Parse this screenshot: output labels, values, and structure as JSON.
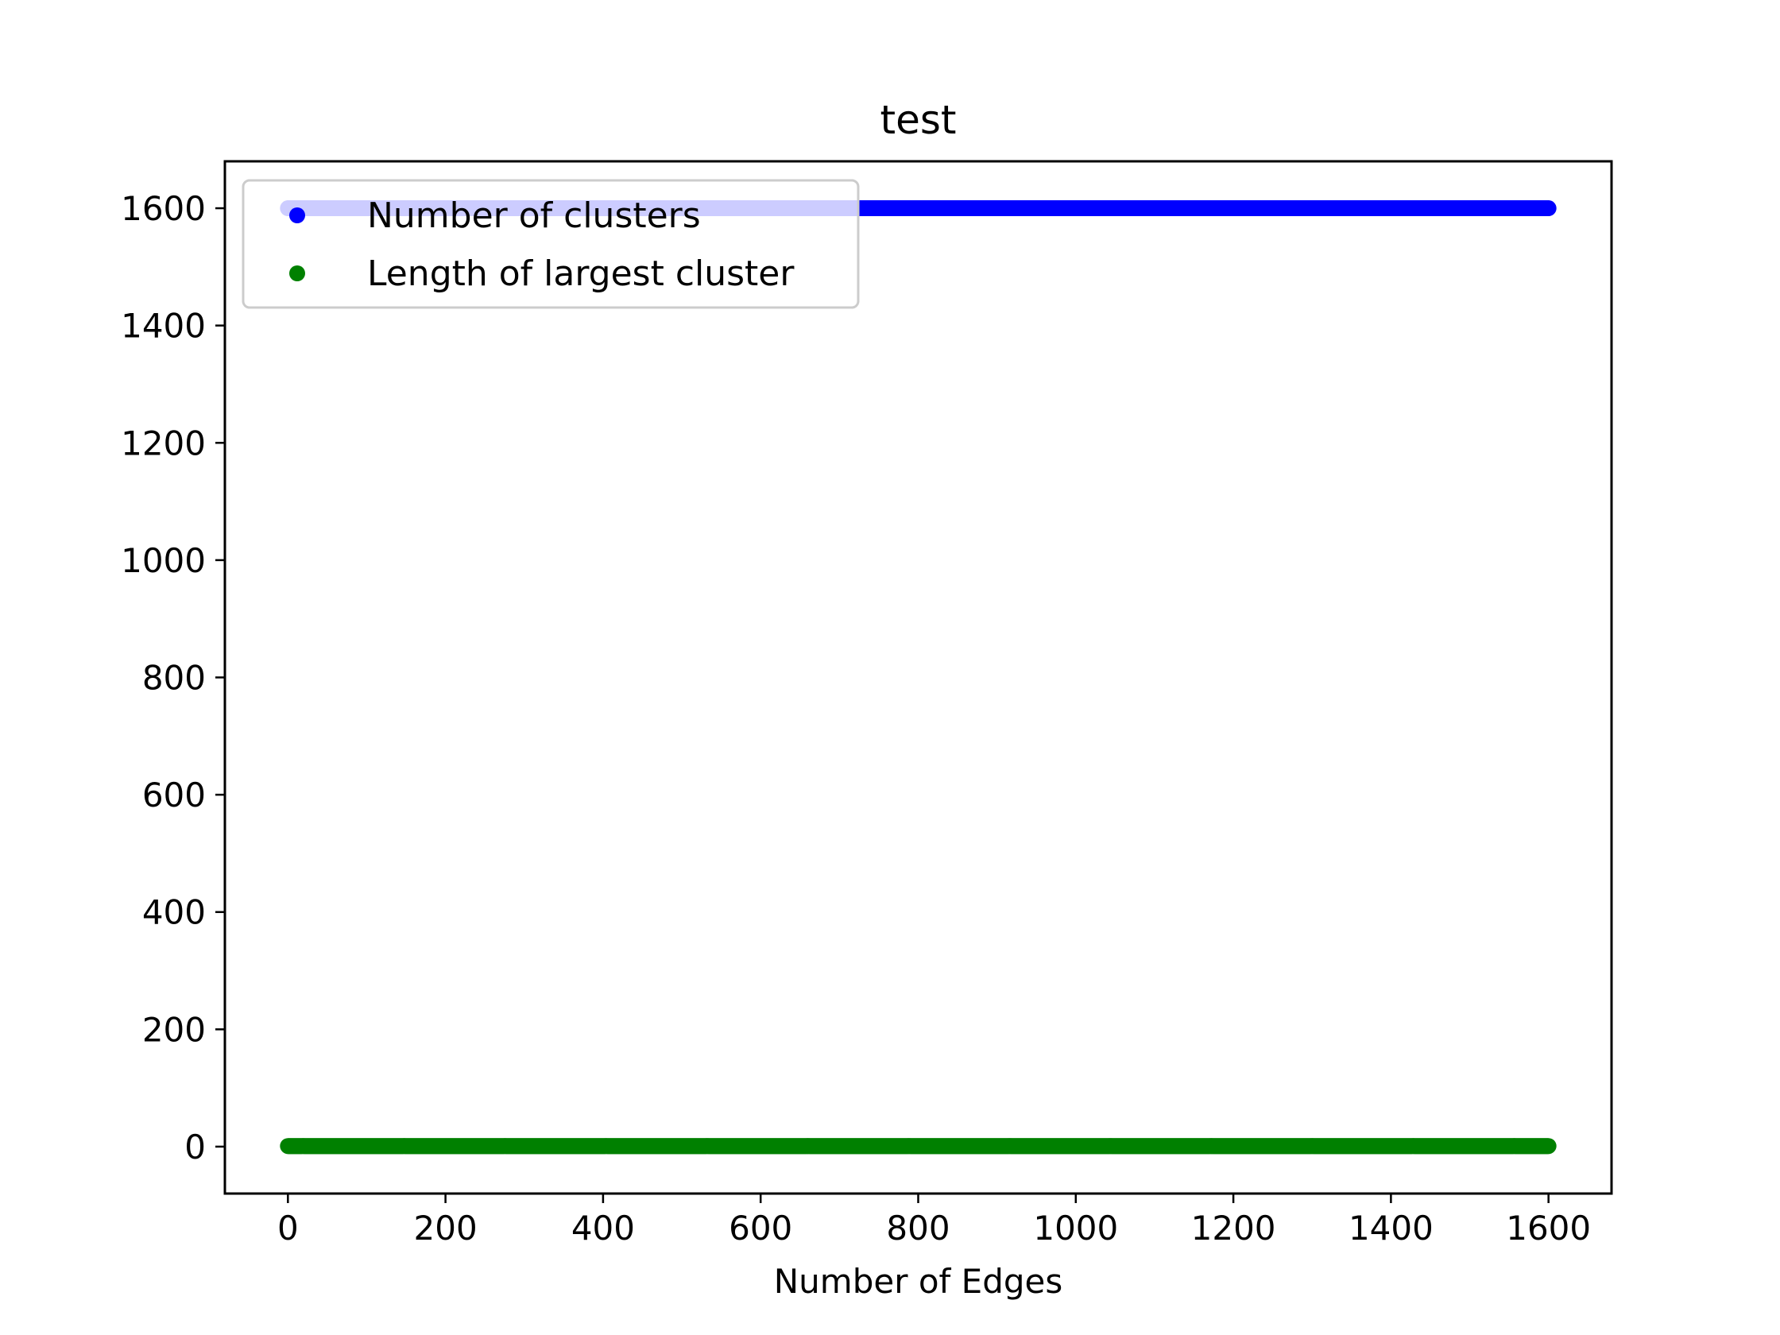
{
  "chart_data": {
    "type": "scatter",
    "title": "test",
    "xlabel": "Number of Edges",
    "ylabel": "",
    "xlim": [
      -80,
      1680
    ],
    "ylim": [
      -80,
      1680
    ],
    "xticks": [
      0,
      200,
      400,
      600,
      800,
      1000,
      1200,
      1400,
      1600
    ],
    "yticks": [
      0,
      200,
      400,
      600,
      800,
      1000,
      1200,
      1400,
      1600
    ],
    "grid": false,
    "legend_position": "top-left",
    "x_range": [
      0,
      1600
    ],
    "series": [
      {
        "name": "Number of clusters",
        "color": "#0000ff",
        "y": 1600,
        "x_start": 0,
        "x_end": 1600,
        "x_step": 1
      },
      {
        "name": "Length of largest cluster",
        "color": "#008000",
        "y": 1,
        "x_start": 0,
        "x_end": 1600,
        "x_step": 1
      }
    ]
  }
}
